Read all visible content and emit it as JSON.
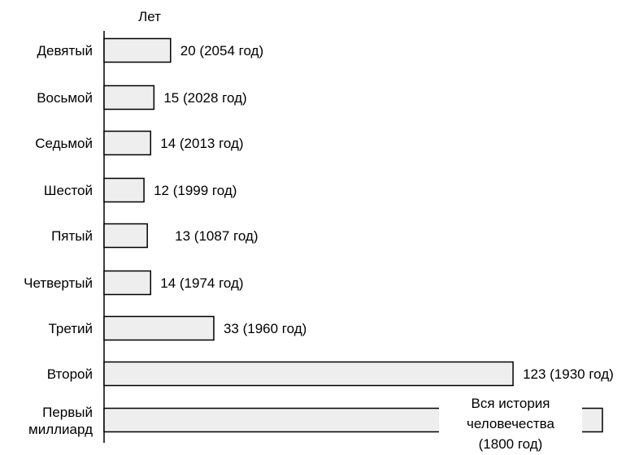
{
  "chart_data": {
    "type": "bar",
    "orientation": "horizontal",
    "unit_label": "Лет",
    "categories": [
      "Девятый",
      "Восьмой",
      "Седьмой",
      "Шестой",
      "Пятый",
      "Четвертый",
      "Третий",
      "Второй",
      "Первый миллиард"
    ],
    "values": [
      20,
      15,
      14,
      12,
      13,
      14,
      33,
      123,
      null
    ],
    "data_labels": [
      "20 (2054 год)",
      "15 (2028 год)",
      "14 (2013 год)",
      "12 (1999 год)",
      "13 (1087 год)",
      "14 (1974 год)",
      "33 (1960 год)",
      "123 (1930 год)",
      "Вся история человечества (1800 год)"
    ],
    "last_label_lines": [
      "Вся история",
      "человечества",
      "(1800 год)"
    ],
    "last_category_lines": [
      "Первый",
      "миллиард"
    ],
    "grid": false,
    "legend": "none",
    "colors": {
      "bar_fill": "#eeeeee",
      "bar_stroke": "#000000"
    }
  }
}
